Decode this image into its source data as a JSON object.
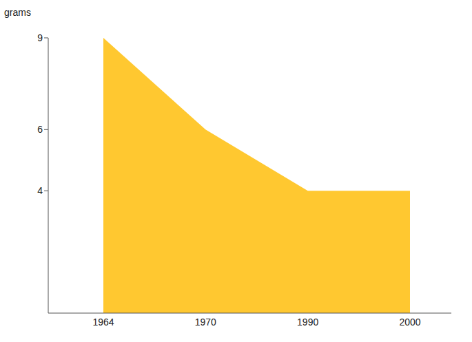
{
  "chart_data": {
    "type": "area",
    "y_label": "grams",
    "categories": [
      "1964",
      "1970",
      "1990",
      "2000"
    ],
    "values": [
      9,
      6,
      4,
      4
    ],
    "color": "#ffc830",
    "ylim": [
      0,
      9
    ],
    "yticks": [
      4,
      6,
      9
    ],
    "grid": false
  }
}
